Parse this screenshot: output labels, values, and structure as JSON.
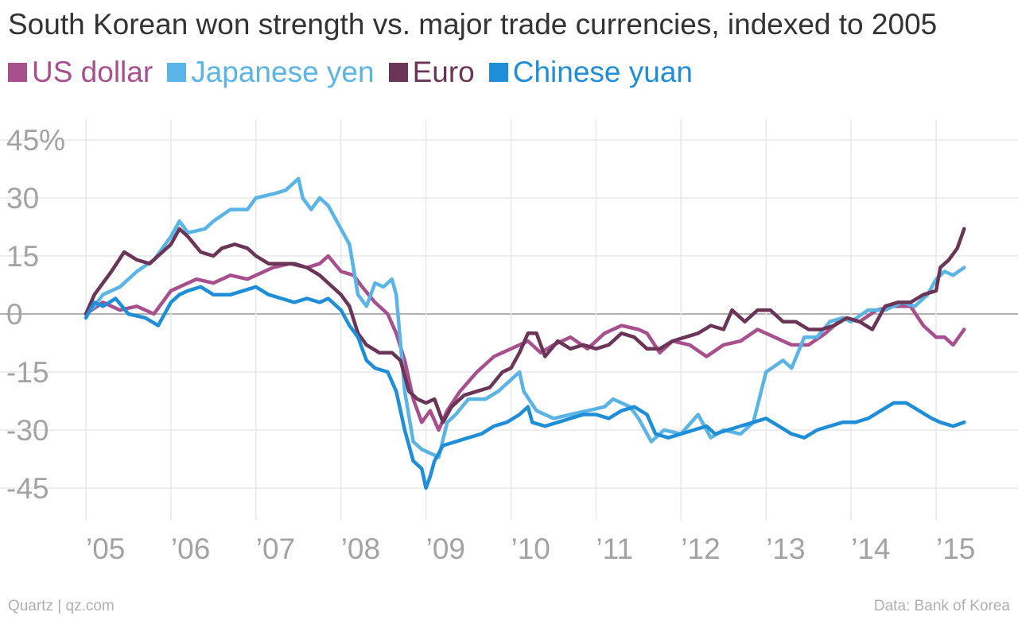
{
  "chart_data": {
    "type": "line",
    "title": "South Korean won strength vs. major trade currencies, indexed to 2005",
    "xlabel": "",
    "ylabel": "",
    "xlim": [
      2005.0,
      2015.33
    ],
    "ylim": [
      -50,
      50
    ],
    "y_ticks": [
      45,
      30,
      15,
      0,
      -15,
      -30,
      -45
    ],
    "y_tick_labels": [
      "45%",
      "30",
      "15",
      "0",
      "-15",
      "-30",
      "-45"
    ],
    "x_ticks": [
      2005,
      2006,
      2007,
      2008,
      2009,
      2010,
      2011,
      2012,
      2013,
      2014,
      2015
    ],
    "x_tick_labels": [
      "’05",
      "’06",
      "’07",
      "’08",
      "’09",
      "’10",
      "’11",
      "’12",
      "’13",
      "’14",
      "’15"
    ],
    "grid": true,
    "legend_position": "top-left",
    "series": [
      {
        "name": "US dollar",
        "color": "#a84f8e",
        "points": [
          [
            2005.0,
            0
          ],
          [
            2005.2,
            3
          ],
          [
            2005.4,
            1
          ],
          [
            2005.6,
            2
          ],
          [
            2005.8,
            0
          ],
          [
            2006.0,
            6
          ],
          [
            2006.2,
            8
          ],
          [
            2006.3,
            9
          ],
          [
            2006.5,
            8
          ],
          [
            2006.7,
            10
          ],
          [
            2006.9,
            9
          ],
          [
            2007.0,
            10
          ],
          [
            2007.2,
            12
          ],
          [
            2007.4,
            13
          ],
          [
            2007.6,
            12
          ],
          [
            2007.75,
            13
          ],
          [
            2007.85,
            15
          ],
          [
            2008.0,
            11
          ],
          [
            2008.15,
            10
          ],
          [
            2008.25,
            7
          ],
          [
            2008.4,
            3
          ],
          [
            2008.55,
            0
          ],
          [
            2008.65,
            -5
          ],
          [
            2008.75,
            -12
          ],
          [
            2008.85,
            -22
          ],
          [
            2008.95,
            -28
          ],
          [
            2009.05,
            -25
          ],
          [
            2009.15,
            -30
          ],
          [
            2009.25,
            -25
          ],
          [
            2009.4,
            -20
          ],
          [
            2009.6,
            -15
          ],
          [
            2009.8,
            -11
          ],
          [
            2010.0,
            -9
          ],
          [
            2010.2,
            -7
          ],
          [
            2010.35,
            -10
          ],
          [
            2010.5,
            -8
          ],
          [
            2010.7,
            -6
          ],
          [
            2010.9,
            -9
          ],
          [
            2011.1,
            -5
          ],
          [
            2011.3,
            -3
          ],
          [
            2011.5,
            -4
          ],
          [
            2011.6,
            -5
          ],
          [
            2011.75,
            -10
          ],
          [
            2011.9,
            -7
          ],
          [
            2012.1,
            -8
          ],
          [
            2012.3,
            -11
          ],
          [
            2012.5,
            -8
          ],
          [
            2012.7,
            -7
          ],
          [
            2012.9,
            -4
          ],
          [
            2013.1,
            -6
          ],
          [
            2013.3,
            -8
          ],
          [
            2013.5,
            -8
          ],
          [
            2013.7,
            -5
          ],
          [
            2013.9,
            -1
          ],
          [
            2014.1,
            -2
          ],
          [
            2014.3,
            1
          ],
          [
            2014.5,
            2
          ],
          [
            2014.7,
            2
          ],
          [
            2014.85,
            -3
          ],
          [
            2015.0,
            -6
          ],
          [
            2015.1,
            -6
          ],
          [
            2015.2,
            -8
          ],
          [
            2015.33,
            -4
          ]
        ]
      },
      {
        "name": "Japanese yen",
        "color": "#5ab4e5",
        "points": [
          [
            2005.0,
            0
          ],
          [
            2005.1,
            2
          ],
          [
            2005.2,
            5
          ],
          [
            2005.4,
            7
          ],
          [
            2005.6,
            11
          ],
          [
            2005.8,
            14
          ],
          [
            2005.9,
            17
          ],
          [
            2006.0,
            20
          ],
          [
            2006.1,
            24
          ],
          [
            2006.2,
            21
          ],
          [
            2006.4,
            22
          ],
          [
            2006.5,
            24
          ],
          [
            2006.7,
            27
          ],
          [
            2006.9,
            27
          ],
          [
            2007.0,
            30
          ],
          [
            2007.2,
            31
          ],
          [
            2007.35,
            32
          ],
          [
            2007.5,
            35
          ],
          [
            2007.55,
            30
          ],
          [
            2007.65,
            27
          ],
          [
            2007.75,
            30
          ],
          [
            2007.85,
            28
          ],
          [
            2008.0,
            22
          ],
          [
            2008.1,
            18
          ],
          [
            2008.2,
            5
          ],
          [
            2008.3,
            2
          ],
          [
            2008.4,
            8
          ],
          [
            2008.5,
            7
          ],
          [
            2008.6,
            9
          ],
          [
            2008.65,
            5
          ],
          [
            2008.75,
            -20
          ],
          [
            2008.85,
            -33
          ],
          [
            2008.95,
            -35
          ],
          [
            2009.05,
            -36
          ],
          [
            2009.15,
            -37
          ],
          [
            2009.25,
            -28
          ],
          [
            2009.35,
            -26
          ],
          [
            2009.5,
            -22
          ],
          [
            2009.7,
            -22
          ],
          [
            2009.85,
            -20
          ],
          [
            2010.0,
            -17
          ],
          [
            2010.1,
            -15
          ],
          [
            2010.15,
            -20
          ],
          [
            2010.3,
            -25
          ],
          [
            2010.5,
            -27
          ],
          [
            2010.7,
            -26
          ],
          [
            2010.9,
            -25
          ],
          [
            2011.1,
            -24
          ],
          [
            2011.2,
            -22
          ],
          [
            2011.4,
            -24
          ],
          [
            2011.5,
            -27
          ],
          [
            2011.65,
            -33
          ],
          [
            2011.8,
            -30
          ],
          [
            2012.0,
            -31
          ],
          [
            2012.2,
            -26
          ],
          [
            2012.35,
            -32
          ],
          [
            2012.5,
            -30
          ],
          [
            2012.7,
            -31
          ],
          [
            2012.85,
            -28
          ],
          [
            2013.0,
            -15
          ],
          [
            2013.2,
            -12
          ],
          [
            2013.3,
            -14
          ],
          [
            2013.45,
            -6
          ],
          [
            2013.6,
            -6
          ],
          [
            2013.75,
            -2
          ],
          [
            2013.9,
            -1
          ],
          [
            2014.0,
            -2
          ],
          [
            2014.2,
            1
          ],
          [
            2014.4,
            1
          ],
          [
            2014.6,
            3
          ],
          [
            2014.75,
            2
          ],
          [
            2014.9,
            5
          ],
          [
            2015.0,
            9
          ],
          [
            2015.1,
            11
          ],
          [
            2015.2,
            10
          ],
          [
            2015.33,
            12
          ]
        ]
      },
      {
        "name": "Euro",
        "color": "#6b3557",
        "points": [
          [
            2005.0,
            0
          ],
          [
            2005.1,
            5
          ],
          [
            2005.2,
            8
          ],
          [
            2005.3,
            11
          ],
          [
            2005.45,
            16
          ],
          [
            2005.6,
            14
          ],
          [
            2005.75,
            13
          ],
          [
            2005.9,
            16
          ],
          [
            2006.0,
            18
          ],
          [
            2006.1,
            22
          ],
          [
            2006.2,
            20
          ],
          [
            2006.35,
            16
          ],
          [
            2006.5,
            15
          ],
          [
            2006.6,
            17
          ],
          [
            2006.75,
            18
          ],
          [
            2006.9,
            17
          ],
          [
            2007.0,
            15
          ],
          [
            2007.15,
            13
          ],
          [
            2007.3,
            13
          ],
          [
            2007.45,
            13
          ],
          [
            2007.6,
            12
          ],
          [
            2007.75,
            10
          ],
          [
            2007.85,
            8
          ],
          [
            2008.0,
            5
          ],
          [
            2008.1,
            2
          ],
          [
            2008.2,
            -5
          ],
          [
            2008.3,
            -8
          ],
          [
            2008.45,
            -10
          ],
          [
            2008.6,
            -10
          ],
          [
            2008.7,
            -12
          ],
          [
            2008.8,
            -20
          ],
          [
            2008.9,
            -22
          ],
          [
            2009.0,
            -23
          ],
          [
            2009.1,
            -22
          ],
          [
            2009.2,
            -28
          ],
          [
            2009.3,
            -24
          ],
          [
            2009.45,
            -21
          ],
          [
            2009.6,
            -20
          ],
          [
            2009.75,
            -19
          ],
          [
            2009.9,
            -15
          ],
          [
            2010.0,
            -14
          ],
          [
            2010.1,
            -10
          ],
          [
            2010.2,
            -5
          ],
          [
            2010.3,
            -5
          ],
          [
            2010.4,
            -11
          ],
          [
            2010.55,
            -7
          ],
          [
            2010.7,
            -9
          ],
          [
            2010.85,
            -8
          ],
          [
            2011.0,
            -9
          ],
          [
            2011.15,
            -8
          ],
          [
            2011.3,
            -5
          ],
          [
            2011.45,
            -6
          ],
          [
            2011.6,
            -9
          ],
          [
            2011.75,
            -9
          ],
          [
            2011.9,
            -7
          ],
          [
            2012.05,
            -6
          ],
          [
            2012.2,
            -5
          ],
          [
            2012.35,
            -3
          ],
          [
            2012.5,
            -4
          ],
          [
            2012.6,
            1
          ],
          [
            2012.75,
            -2
          ],
          [
            2012.9,
            1
          ],
          [
            2013.05,
            1
          ],
          [
            2013.2,
            -2
          ],
          [
            2013.35,
            -2
          ],
          [
            2013.5,
            -4
          ],
          [
            2013.65,
            -4
          ],
          [
            2013.8,
            -3
          ],
          [
            2013.95,
            -1
          ],
          [
            2014.1,
            -2
          ],
          [
            2014.25,
            -4
          ],
          [
            2014.4,
            2
          ],
          [
            2014.55,
            3
          ],
          [
            2014.7,
            3
          ],
          [
            2014.85,
            5
          ],
          [
            2015.0,
            6
          ],
          [
            2015.05,
            12
          ],
          [
            2015.15,
            14
          ],
          [
            2015.25,
            17
          ],
          [
            2015.33,
            22
          ]
        ]
      },
      {
        "name": "Chinese yuan",
        "color": "#1f8ed8",
        "points": [
          [
            2005.0,
            -1
          ],
          [
            2005.1,
            3
          ],
          [
            2005.2,
            2
          ],
          [
            2005.35,
            4
          ],
          [
            2005.5,
            0
          ],
          [
            2005.7,
            -1
          ],
          [
            2005.85,
            -3
          ],
          [
            2006.0,
            3
          ],
          [
            2006.1,
            5
          ],
          [
            2006.2,
            6
          ],
          [
            2006.35,
            7
          ],
          [
            2006.5,
            5
          ],
          [
            2006.7,
            5
          ],
          [
            2006.85,
            6
          ],
          [
            2007.0,
            7
          ],
          [
            2007.15,
            5
          ],
          [
            2007.3,
            4
          ],
          [
            2007.45,
            3
          ],
          [
            2007.6,
            4
          ],
          [
            2007.75,
            3
          ],
          [
            2007.85,
            4
          ],
          [
            2008.0,
            1
          ],
          [
            2008.1,
            -3
          ],
          [
            2008.2,
            -6
          ],
          [
            2008.3,
            -12
          ],
          [
            2008.4,
            -14
          ],
          [
            2008.55,
            -15
          ],
          [
            2008.65,
            -20
          ],
          [
            2008.75,
            -30
          ],
          [
            2008.85,
            -38
          ],
          [
            2008.95,
            -40
          ],
          [
            2009.0,
            -45
          ],
          [
            2009.05,
            -42
          ],
          [
            2009.1,
            -38
          ],
          [
            2009.2,
            -34
          ],
          [
            2009.35,
            -33
          ],
          [
            2009.5,
            -32
          ],
          [
            2009.65,
            -31
          ],
          [
            2009.8,
            -29
          ],
          [
            2009.95,
            -28
          ],
          [
            2010.1,
            -26
          ],
          [
            2010.2,
            -24
          ],
          [
            2010.25,
            -28
          ],
          [
            2010.4,
            -29
          ],
          [
            2010.55,
            -28
          ],
          [
            2010.7,
            -27
          ],
          [
            2010.85,
            -26
          ],
          [
            2011.0,
            -26
          ],
          [
            2011.15,
            -27
          ],
          [
            2011.3,
            -25
          ],
          [
            2011.45,
            -24
          ],
          [
            2011.6,
            -26
          ],
          [
            2011.7,
            -31
          ],
          [
            2011.85,
            -32
          ],
          [
            2012.0,
            -31
          ],
          [
            2012.15,
            -30
          ],
          [
            2012.3,
            -29
          ],
          [
            2012.4,
            -31
          ],
          [
            2012.55,
            -30
          ],
          [
            2012.7,
            -29
          ],
          [
            2012.85,
            -28
          ],
          [
            2013.0,
            -27
          ],
          [
            2013.15,
            -29
          ],
          [
            2013.3,
            -31
          ],
          [
            2013.45,
            -32
          ],
          [
            2013.6,
            -30
          ],
          [
            2013.75,
            -29
          ],
          [
            2013.9,
            -28
          ],
          [
            2014.05,
            -28
          ],
          [
            2014.2,
            -27
          ],
          [
            2014.35,
            -25
          ],
          [
            2014.5,
            -23
          ],
          [
            2014.65,
            -23
          ],
          [
            2014.8,
            -25
          ],
          [
            2014.95,
            -27
          ],
          [
            2015.05,
            -28
          ],
          [
            2015.2,
            -29
          ],
          [
            2015.33,
            -28
          ]
        ]
      }
    ]
  },
  "footer": {
    "left": "Quartz | qz.com",
    "right": "Data: Bank of Korea"
  }
}
